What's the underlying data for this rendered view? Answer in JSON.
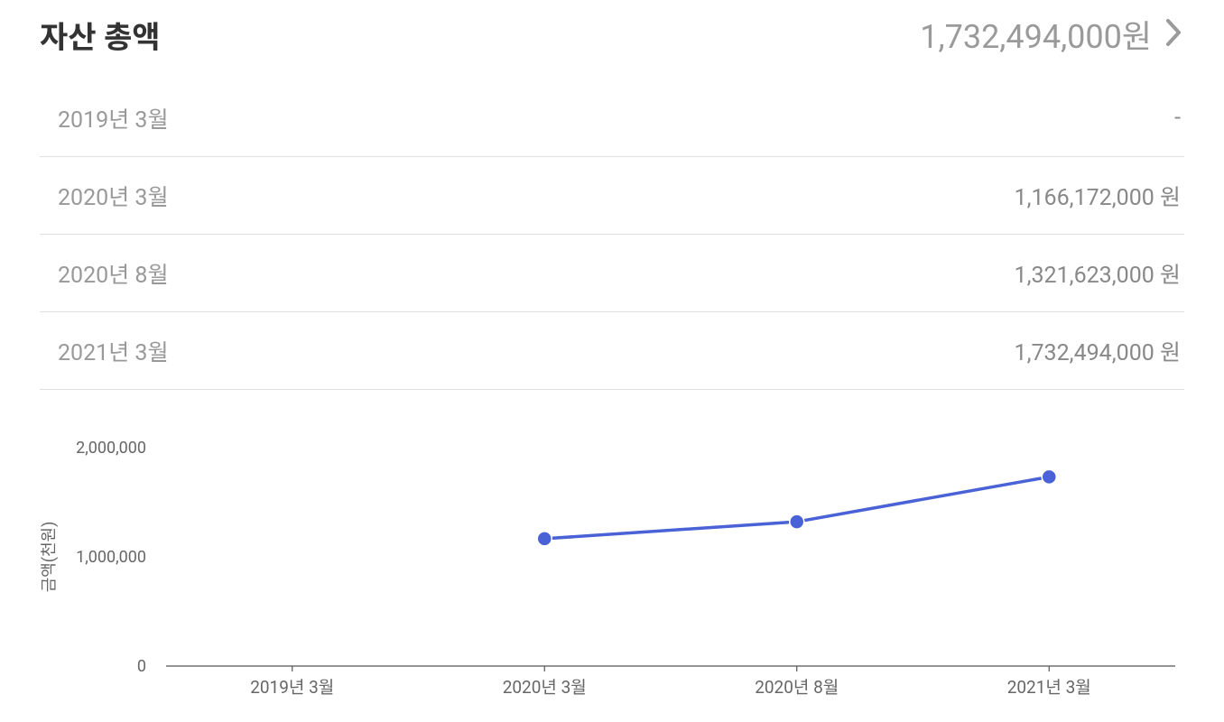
{
  "header": {
    "title": "자산 총액",
    "total_display": "1,732,494,000원"
  },
  "table": {
    "rows": [
      {
        "date": "2019년 3월",
        "value_display": "-"
      },
      {
        "date": "2020년 3월",
        "value_display": "1,166,172,000 원"
      },
      {
        "date": "2020년 8월",
        "value_display": "1,321,623,000 원"
      },
      {
        "date": "2021년 3월",
        "value_display": "1,732,494,000 원"
      }
    ]
  },
  "chart": {
    "type": "line",
    "ylabel": "금액(천원)",
    "categories": [
      "2019년 3월",
      "2020년 3월",
      "2020년 8월",
      "2021년 3월"
    ],
    "values": [
      null,
      1166172,
      1321623,
      1732494
    ],
    "ylim": [
      0,
      2000000
    ],
    "yticks": [
      0,
      1000000,
      2000000
    ],
    "ytick_labels": [
      "0",
      "1,000,000",
      "2,000,000"
    ],
    "line_color": "#4962d6",
    "marker_fill": "#4962d6",
    "marker_stroke": "#ffffff",
    "marker_radius": 8,
    "line_width": 3.5,
    "axis_color": "#555555",
    "background_color": "#ffffff",
    "label_fontsize": 18
  }
}
